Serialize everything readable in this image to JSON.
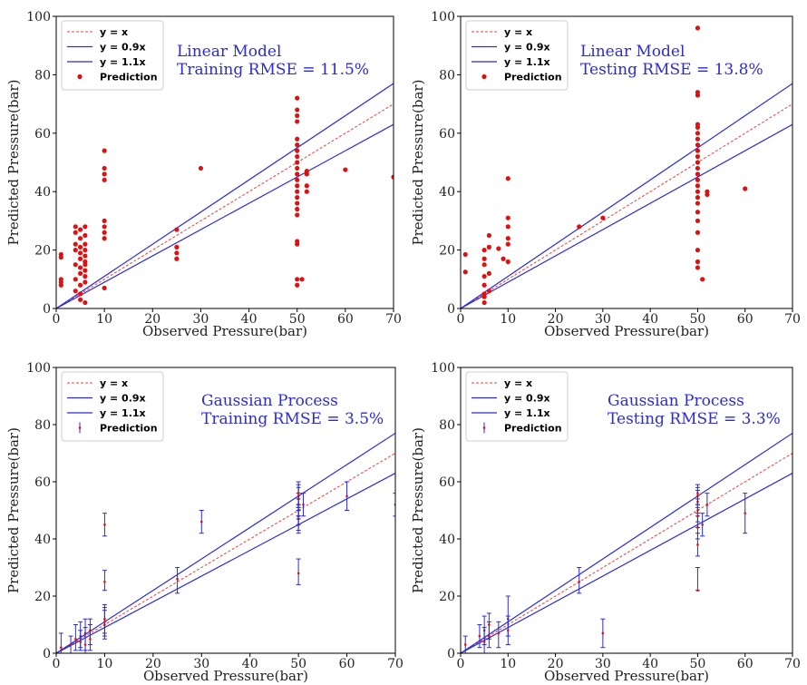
{
  "colors": {
    "identity": "#e8413c",
    "bound": "#2b2bd8",
    "point": "#e01010",
    "errorbar": "#2b2bd8",
    "annotation": "#2b2bd8"
  },
  "chart_data": [
    {
      "type": "scatter",
      "panel": "linear-training",
      "xlabel": "Observed Pressure(bar)",
      "ylabel": "Predicted Pressure(bar)",
      "xlim": [
        0,
        70
      ],
      "ylim": [
        0,
        100
      ],
      "xticks": [
        "0",
        "10",
        "20",
        "30",
        "40",
        "50",
        "60",
        "70"
      ],
      "yticks": [
        "0",
        "20",
        "40",
        "60",
        "80",
        "100"
      ],
      "legend": [
        "y = x",
        "y = 0.9x",
        "y = 1.1x",
        "Prediction"
      ],
      "legend_position": "upper-left",
      "annotation": [
        "Linear Model",
        "Training RMSE = 11.5%"
      ],
      "errorbars": false,
      "points": [
        [
          1,
          8
        ],
        [
          1,
          9
        ],
        [
          1,
          10
        ],
        [
          1,
          17.5
        ],
        [
          1,
          18.5
        ],
        [
          4,
          6
        ],
        [
          4,
          10
        ],
        [
          4,
          15
        ],
        [
          4,
          20
        ],
        [
          4,
          22
        ],
        [
          4,
          26
        ],
        [
          4,
          28
        ],
        [
          5,
          3
        ],
        [
          5,
          5
        ],
        [
          5,
          8
        ],
        [
          5,
          12
        ],
        [
          5,
          14
        ],
        [
          5,
          17
        ],
        [
          5,
          19
        ],
        [
          5,
          21
        ],
        [
          5,
          24
        ],
        [
          5,
          27
        ],
        [
          6,
          2
        ],
        [
          6,
          9
        ],
        [
          6,
          11
        ],
        [
          6,
          13
        ],
        [
          6,
          15
        ],
        [
          6,
          16
        ],
        [
          6,
          18
        ],
        [
          6,
          20
        ],
        [
          6,
          22
        ],
        [
          6,
          25
        ],
        [
          6,
          28
        ],
        [
          10,
          7
        ],
        [
          10,
          24
        ],
        [
          10,
          26
        ],
        [
          10,
          28
        ],
        [
          10,
          30
        ],
        [
          10,
          44
        ],
        [
          10,
          46
        ],
        [
          10,
          48
        ],
        [
          10,
          54
        ],
        [
          25,
          17
        ],
        [
          25,
          19
        ],
        [
          25,
          21
        ],
        [
          25,
          27
        ],
        [
          30,
          48
        ],
        [
          50,
          8
        ],
        [
          50,
          10
        ],
        [
          50,
          22
        ],
        [
          50,
          23
        ],
        [
          50,
          32
        ],
        [
          50,
          34
        ],
        [
          50,
          36
        ],
        [
          50,
          38
        ],
        [
          50,
          40
        ],
        [
          50,
          42
        ],
        [
          50,
          44
        ],
        [
          50,
          46
        ],
        [
          50,
          48
        ],
        [
          50,
          50
        ],
        [
          50,
          52
        ],
        [
          50,
          54
        ],
        [
          50,
          56
        ],
        [
          50,
          58
        ],
        [
          50,
          64
        ],
        [
          50,
          66
        ],
        [
          50,
          68
        ],
        [
          50,
          72
        ],
        [
          51,
          10
        ],
        [
          52,
          40
        ],
        [
          52,
          42
        ],
        [
          52,
          46
        ],
        [
          52,
          47
        ],
        [
          60,
          47.5
        ],
        [
          70,
          45
        ]
      ]
    },
    {
      "type": "scatter",
      "panel": "linear-testing",
      "xlabel": "Observed Pressure(bar)",
      "ylabel": "Predicted Pressure(bar)",
      "xlim": [
        0,
        70
      ],
      "ylim": [
        0,
        100
      ],
      "xticks": [
        "0",
        "10",
        "20",
        "30",
        "40",
        "50",
        "60",
        "70"
      ],
      "yticks": [
        "0",
        "20",
        "40",
        "60",
        "80",
        "100"
      ],
      "legend": [
        "y = x",
        "y = 0.9x",
        "y = 1.1x",
        "Prediction"
      ],
      "legend_position": "upper-left",
      "annotation": [
        "Linear Model",
        "Testing RMSE = 13.8%"
      ],
      "errorbars": false,
      "points": [
        [
          1,
          12.5
        ],
        [
          1,
          18.5
        ],
        [
          5,
          2
        ],
        [
          5,
          4
        ],
        [
          5,
          5
        ],
        [
          5,
          8
        ],
        [
          5,
          11
        ],
        [
          5,
          15
        ],
        [
          5,
          17
        ],
        [
          5,
          20
        ],
        [
          6,
          6
        ],
        [
          6,
          12
        ],
        [
          6,
          21
        ],
        [
          6,
          25
        ],
        [
          8,
          20.5
        ],
        [
          9,
          17
        ],
        [
          10,
          16
        ],
        [
          10,
          22
        ],
        [
          10,
          24
        ],
        [
          10,
          28
        ],
        [
          10,
          31
        ],
        [
          10,
          44.5
        ],
        [
          25,
          28
        ],
        [
          30,
          31
        ],
        [
          50,
          14
        ],
        [
          50,
          16
        ],
        [
          50,
          20
        ],
        [
          50,
          26
        ],
        [
          50,
          30
        ],
        [
          50,
          33
        ],
        [
          50,
          36
        ],
        [
          50,
          38
        ],
        [
          50,
          40
        ],
        [
          50,
          42
        ],
        [
          50,
          44
        ],
        [
          50,
          46
        ],
        [
          50,
          48
        ],
        [
          50,
          50
        ],
        [
          50,
          52
        ],
        [
          50,
          54
        ],
        [
          50,
          56
        ],
        [
          50,
          58
        ],
        [
          50,
          60
        ],
        [
          50,
          62
        ],
        [
          50,
          63
        ],
        [
          50,
          73
        ],
        [
          50,
          74
        ],
        [
          50,
          96
        ],
        [
          51,
          10
        ],
        [
          52,
          39
        ],
        [
          52,
          40
        ],
        [
          60,
          41
        ]
      ]
    },
    {
      "type": "scatter",
      "panel": "gp-training",
      "xlabel": "Observed Pressure(bar)",
      "ylabel": "Predicted Pressure(bar)",
      "xlim": [
        0,
        70
      ],
      "ylim": [
        0,
        100
      ],
      "xticks": [
        "0",
        "10",
        "20",
        "30",
        "40",
        "50",
        "60",
        "70"
      ],
      "yticks": [
        "0",
        "20",
        "40",
        "60",
        "80",
        "100"
      ],
      "legend": [
        "y = x",
        "y = 0.9x",
        "y = 1.1x",
        "Prediction"
      ],
      "legend_position": "upper-left",
      "annotation": [
        "Gaussian Process",
        "Training RMSE = 3.5%"
      ],
      "errorbars": true,
      "points": [
        [
          1,
          2,
          0,
          7
        ],
        [
          3,
          3,
          0,
          6
        ],
        [
          4,
          5,
          1,
          10
        ],
        [
          5,
          6,
          2,
          11
        ],
        [
          5,
          4,
          1,
          8
        ],
        [
          6,
          7,
          1,
          12
        ],
        [
          6,
          3,
          0,
          9
        ],
        [
          7,
          8,
          3,
          12
        ],
        [
          7,
          5,
          1,
          10
        ],
        [
          10,
          10,
          5,
          16
        ],
        [
          10,
          12,
          7,
          17
        ],
        [
          10,
          11,
          6,
          15
        ],
        [
          10,
          25,
          22,
          29
        ],
        [
          10,
          45,
          41,
          49
        ],
        [
          25,
          26,
          21,
          30
        ],
        [
          30,
          46,
          42,
          50
        ],
        [
          50,
          28,
          24,
          33
        ],
        [
          50,
          45,
          42,
          48
        ],
        [
          50,
          47,
          43,
          51
        ],
        [
          50,
          48,
          45,
          52
        ],
        [
          50,
          50,
          47,
          54
        ],
        [
          50,
          52,
          48,
          56
        ],
        [
          50,
          54,
          50,
          58
        ],
        [
          50,
          55,
          51,
          59
        ],
        [
          50,
          56,
          52,
          60
        ],
        [
          51,
          52,
          48,
          56
        ],
        [
          60,
          55,
          50,
          60
        ],
        [
          70,
          52,
          48,
          56
        ]
      ]
    },
    {
      "type": "scatter",
      "panel": "gp-testing",
      "xlabel": "Observed Pressure(bar)",
      "ylabel": "Predicted Pressure(bar)",
      "xlim": [
        0,
        70
      ],
      "ylim": [
        0,
        100
      ],
      "xticks": [
        "0",
        "10",
        "20",
        "30",
        "40",
        "50",
        "60",
        "70"
      ],
      "yticks": [
        "0",
        "20",
        "40",
        "60",
        "80",
        "100"
      ],
      "legend": [
        "y = x",
        "y = 0.9x",
        "y = 1.1x",
        "Prediction"
      ],
      "legend_position": "upper-left",
      "annotation": [
        "Gaussian Process",
        "Testing RMSE = 3.3%"
      ],
      "errorbars": true,
      "points": [
        [
          1,
          3,
          0,
          6
        ],
        [
          4,
          6,
          2,
          10
        ],
        [
          5,
          8,
          3,
          13
        ],
        [
          5,
          4,
          0,
          9
        ],
        [
          6,
          10,
          5,
          14
        ],
        [
          6,
          6,
          2,
          11
        ],
        [
          8,
          7,
          2,
          11
        ],
        [
          10,
          12,
          6,
          20
        ],
        [
          10,
          8,
          3,
          13
        ],
        [
          25,
          25,
          21,
          30
        ],
        [
          30,
          7,
          2,
          12
        ],
        [
          50,
          22,
          22,
          30
        ],
        [
          50,
          38,
          34,
          42
        ],
        [
          50,
          44,
          40,
          48
        ],
        [
          50,
          48,
          44,
          52
        ],
        [
          50,
          50,
          46,
          54
        ],
        [
          50,
          53,
          49,
          57
        ],
        [
          50,
          55,
          51,
          58
        ],
        [
          50,
          56,
          52,
          59
        ],
        [
          51,
          45,
          41,
          49
        ],
        [
          52,
          52,
          48,
          56
        ],
        [
          60,
          49,
          42,
          56
        ]
      ]
    }
  ]
}
